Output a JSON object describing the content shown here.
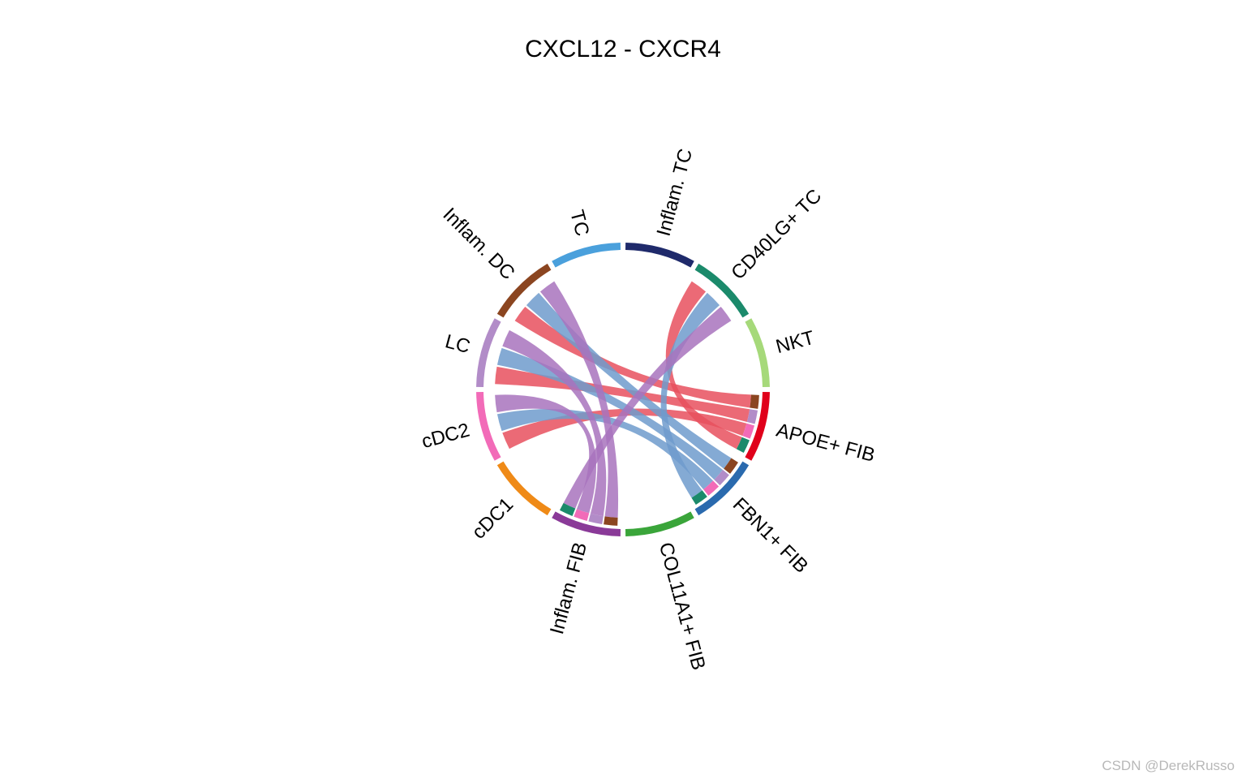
{
  "watermark": "CSDN @DerekRusso",
  "chart_data": {
    "type": "chord",
    "title": "CXCL12 - CXCR4",
    "sectors": [
      {
        "name": "Inflam. TC",
        "color": "#1f2a6b"
      },
      {
        "name": "CD40LG+ TC",
        "color": "#1b8a6b"
      },
      {
        "name": "NKT",
        "color": "#a6d97a"
      },
      {
        "name": "APOE+ FIB",
        "color": "#e0001b"
      },
      {
        "name": "FBN1+ FIB",
        "color": "#2a6aae"
      },
      {
        "name": "COL11A1+ FIB",
        "color": "#3aa53a"
      },
      {
        "name": "Inflam. FIB",
        "color": "#8a3a98"
      },
      {
        "name": "cDC1",
        "color": "#ef8a17"
      },
      {
        "name": "cDC2",
        "color": "#f26bb8"
      },
      {
        "name": "LC",
        "color": "#b28cc8"
      },
      {
        "name": "Inflam. DC",
        "color": "#8b4520"
      },
      {
        "name": "TC",
        "color": "#4aa0dc"
      }
    ],
    "links": [
      {
        "from": "APOE+ FIB",
        "to": "Inflam. DC",
        "color": "#e8505e"
      },
      {
        "from": "APOE+ FIB",
        "to": "LC",
        "color": "#e8505e"
      },
      {
        "from": "APOE+ FIB",
        "to": "cDC2",
        "color": "#e8505e"
      },
      {
        "from": "APOE+ FIB",
        "to": "CD40LG+ TC",
        "color": "#e8505e"
      },
      {
        "from": "FBN1+ FIB",
        "to": "Inflam. DC",
        "color": "#6e9bcc"
      },
      {
        "from": "FBN1+ FIB",
        "to": "LC",
        "color": "#6e9bcc"
      },
      {
        "from": "FBN1+ FIB",
        "to": "cDC2",
        "color": "#6e9bcc"
      },
      {
        "from": "FBN1+ FIB",
        "to": "CD40LG+ TC",
        "color": "#6e9bcc"
      },
      {
        "from": "Inflam. FIB",
        "to": "Inflam. DC",
        "color": "#a873bd"
      },
      {
        "from": "Inflam. FIB",
        "to": "LC",
        "color": "#a873bd"
      },
      {
        "from": "Inflam. FIB",
        "to": "cDC2",
        "color": "#a873bd"
      },
      {
        "from": "Inflam. FIB",
        "to": "CD40LG+ TC",
        "color": "#a873bd"
      }
    ]
  }
}
